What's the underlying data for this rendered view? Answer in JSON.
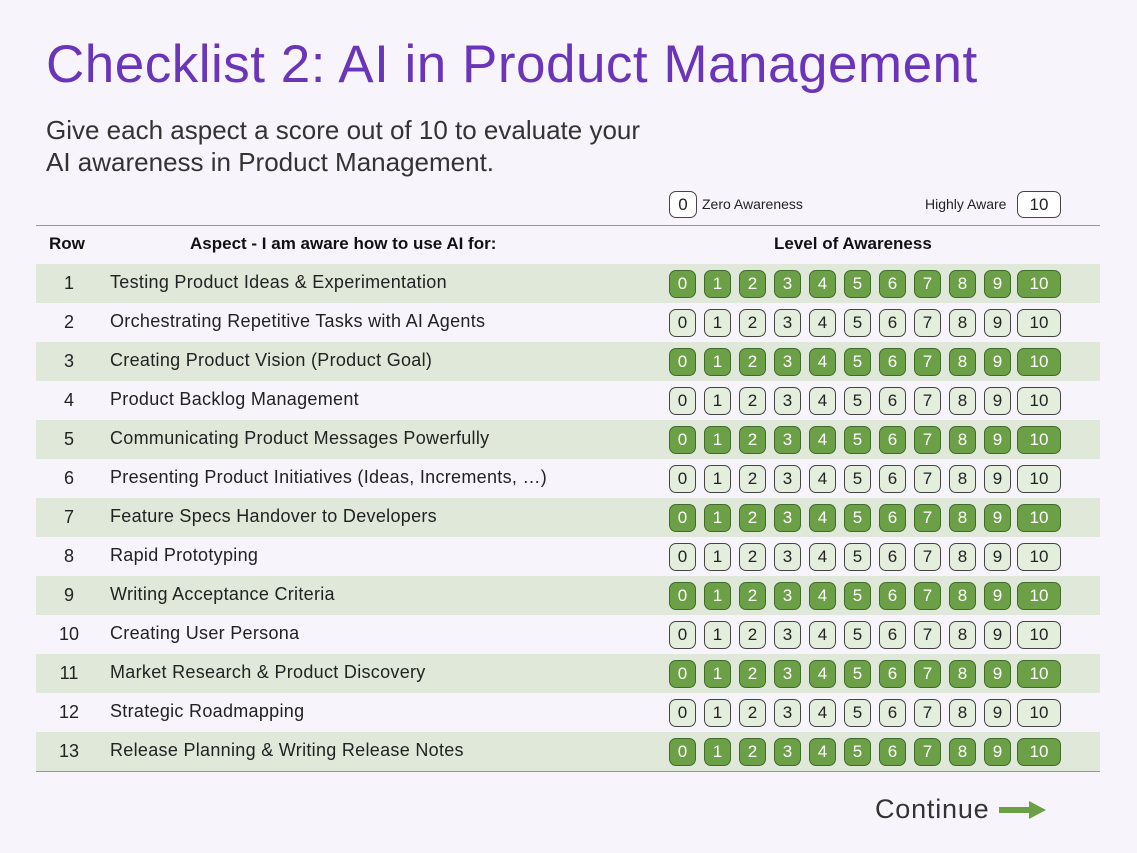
{
  "title": "Checklist 2: AI in Product Management",
  "subtitle_line1": "Give each aspect a score out of 10 to evaluate your",
  "subtitle_line2": "AI awareness in Product Management.",
  "legend": {
    "zero_value": "0",
    "zero_label": "Zero Awareness",
    "high_label": "Highly Aware",
    "high_value": "10"
  },
  "headers": {
    "row": "Row",
    "aspect": "Aspect - I am aware how to use AI for:",
    "level": "Level of Awareness"
  },
  "scores": [
    "0",
    "1",
    "2",
    "3",
    "4",
    "5",
    "6",
    "7",
    "8",
    "9",
    "10"
  ],
  "rows": [
    {
      "num": "1",
      "aspect": "Testing Product Ideas & Experimentation"
    },
    {
      "num": "2",
      "aspect": "Orchestrating Repetitive Tasks with AI Agents"
    },
    {
      "num": "3",
      "aspect": "Creating Product Vision (Product Goal)"
    },
    {
      "num": "4",
      "aspect": "Product Backlog Management"
    },
    {
      "num": "5",
      "aspect": "Communicating Product Messages Powerfully"
    },
    {
      "num": "6",
      "aspect": "Presenting Product Initiatives (Ideas, Increments, …)"
    },
    {
      "num": "7",
      "aspect": "Feature Specs Handover to Developers"
    },
    {
      "num": "8",
      "aspect": "Rapid Prototyping"
    },
    {
      "num": "9",
      "aspect": "Writing Acceptance Criteria"
    },
    {
      "num": "10",
      "aspect": "Creating User Persona"
    },
    {
      "num": "11",
      "aspect": "Market Research & Product Discovery"
    },
    {
      "num": "12",
      "aspect": "Strategic Roadmapping"
    },
    {
      "num": "13",
      "aspect": "Release Planning & Writing Release Notes"
    }
  ],
  "continue_label": "Continue",
  "colors": {
    "title": "#6a35b8",
    "shaded_row": "#e0e9d9",
    "score_dark": "#6ba046",
    "score_light": "#e4eedd",
    "arrow": "#6ba046"
  }
}
